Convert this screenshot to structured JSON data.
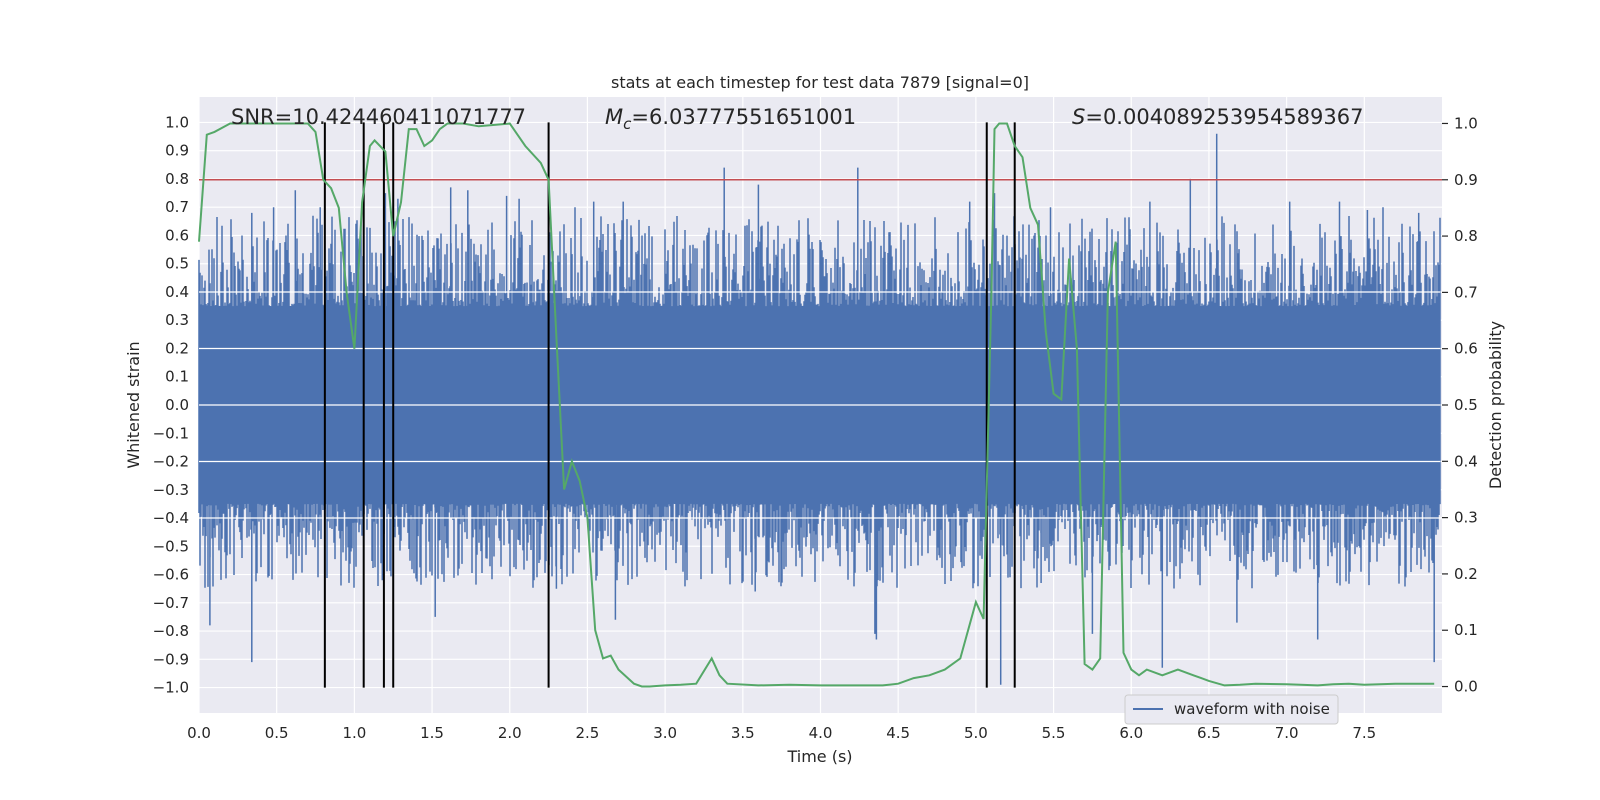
{
  "chart_data": {
    "type": "line",
    "title": "stats at each timestep for test data 7879 [signal=0]",
    "xlabel": "Time (s)",
    "ylabel": "Whitened strain",
    "y2label": "Detection probability",
    "xlim": [
      0.0,
      8.0
    ],
    "ylim": [
      -1.09,
      1.09
    ],
    "y2lim": [
      -0.047,
      1.047
    ],
    "xticks": [
      "0.0",
      "0.5",
      "1.0",
      "1.5",
      "2.0",
      "2.5",
      "3.0",
      "3.5",
      "4.0",
      "4.5",
      "5.0",
      "5.5",
      "6.0",
      "6.5",
      "7.0",
      "7.5"
    ],
    "yticks": [
      "1.0",
      "0.9",
      "0.8",
      "0.7",
      "0.6",
      "0.5",
      "0.4",
      "0.3",
      "0.2",
      "0.1",
      "0.0",
      "−0.1",
      "−0.2",
      "−0.3",
      "−0.4",
      "−0.5",
      "−0.6",
      "−0.7",
      "−0.8",
      "−0.9",
      "−1.0"
    ],
    "y2ticks": [
      "1.0",
      "0.9",
      "0.8",
      "0.7",
      "0.6",
      "0.5",
      "0.4",
      "0.3",
      "0.2",
      "0.1",
      "0.0"
    ],
    "annotations": {
      "snr": "SNR=10.424460411071777",
      "mc_prefix": "M",
      "mc_sub": "c",
      "mc_value": "=6.03777551651001",
      "s_prefix": "S",
      "s_value": "=0.004089253954589367"
    },
    "legend": {
      "label": "waveform with noise",
      "location": "lower right"
    },
    "threshold": {
      "value": 0.9,
      "axis": "y2",
      "color": "#c44e52"
    },
    "vertical_lines": [
      0.81,
      1.06,
      1.19,
      1.25,
      2.25,
      5.07,
      5.25
    ],
    "waveform": {
      "name": "waveform with noise",
      "color": "#4c72b0",
      "x_range": [
        0.0,
        7.99
      ],
      "core_amplitude": 0.35,
      "peaks_pos": [
        [
          0.34,
          0.68
        ],
        [
          0.48,
          0.7
        ],
        [
          0.62,
          0.76
        ],
        [
          0.78,
          0.7
        ],
        [
          1.2,
          0.75
        ],
        [
          1.28,
          0.73
        ],
        [
          1.62,
          0.77
        ],
        [
          1.73,
          0.76
        ],
        [
          1.98,
          0.74
        ],
        [
          2.06,
          0.73
        ],
        [
          2.42,
          0.7
        ],
        [
          2.54,
          0.72
        ],
        [
          2.73,
          0.72
        ],
        [
          3.38,
          0.84
        ],
        [
          3.6,
          0.78
        ],
        [
          4.24,
          0.84
        ],
        [
          4.96,
          0.72
        ],
        [
          5.12,
          0.75
        ],
        [
          5.48,
          0.7
        ],
        [
          6.12,
          0.72
        ],
        [
          6.38,
          0.8
        ],
        [
          6.55,
          0.96
        ],
        [
          7.02,
          0.72
        ],
        [
          7.34,
          0.72
        ],
        [
          7.52,
          0.69
        ],
        [
          7.62,
          0.7
        ],
        [
          7.85,
          0.68
        ]
      ],
      "peaks_neg": [
        [
          0.07,
          -0.78
        ],
        [
          0.34,
          -0.91
        ],
        [
          1.06,
          -0.84
        ],
        [
          1.18,
          -0.62
        ],
        [
          1.52,
          -0.75
        ],
        [
          2.3,
          -0.65
        ],
        [
          2.68,
          -0.76
        ],
        [
          3.58,
          -0.66
        ],
        [
          4.35,
          -0.81
        ],
        [
          4.36,
          -0.83
        ],
        [
          5.16,
          -0.99
        ],
        [
          5.16,
          -0.98
        ],
        [
          5.42,
          -0.63
        ],
        [
          5.75,
          -0.81
        ],
        [
          6.2,
          -0.93
        ],
        [
          6.68,
          -0.77
        ],
        [
          7.2,
          -0.83
        ],
        [
          7.95,
          -0.91
        ]
      ]
    },
    "series": [
      {
        "name": "Detection probability",
        "axis": "y2",
        "color": "#55a868",
        "x": [
          0.0,
          0.05,
          0.1,
          0.2,
          0.4,
          0.6,
          0.7,
          0.75,
          0.8,
          0.85,
          0.9,
          0.95,
          1.0,
          1.05,
          1.1,
          1.13,
          1.2,
          1.25,
          1.3,
          1.35,
          1.4,
          1.45,
          1.5,
          1.55,
          1.6,
          1.7,
          1.8,
          2.0,
          2.05,
          2.1,
          2.2,
          2.25,
          2.3,
          2.35,
          2.4,
          2.45,
          2.5,
          2.55,
          2.6,
          2.65,
          2.7,
          2.8,
          2.85,
          2.9,
          3.0,
          3.1,
          3.2,
          3.3,
          3.35,
          3.4,
          3.6,
          3.8,
          4.0,
          4.2,
          4.4,
          4.5,
          4.6,
          4.7,
          4.8,
          4.9,
          5.0,
          5.05,
          5.1,
          5.12,
          5.15,
          5.2,
          5.25,
          5.3,
          5.35,
          5.4,
          5.45,
          5.5,
          5.55,
          5.6,
          5.65,
          5.7,
          5.75,
          5.8,
          5.85,
          5.9,
          5.95,
          6.0,
          6.05,
          6.1,
          6.2,
          6.3,
          6.4,
          6.45,
          6.5,
          6.6,
          6.7,
          6.8,
          7.0,
          7.2,
          7.3,
          7.4,
          7.5,
          7.6,
          7.7,
          7.8,
          7.9,
          7.95
        ],
        "values": [
          0.79,
          0.98,
          0.985,
          1.0,
          1.0,
          1.0,
          1.0,
          0.985,
          0.9,
          0.885,
          0.85,
          0.7,
          0.6,
          0.86,
          0.96,
          0.97,
          0.95,
          0.8,
          0.86,
          0.99,
          0.99,
          0.96,
          0.97,
          0.99,
          1.0,
          1.0,
          0.995,
          1.0,
          0.98,
          0.96,
          0.93,
          0.9,
          0.62,
          0.35,
          0.4,
          0.365,
          0.3,
          0.1,
          0.05,
          0.055,
          0.03,
          0.005,
          0.0,
          0.0,
          0.002,
          0.003,
          0.005,
          0.05,
          0.02,
          0.005,
          0.002,
          0.003,
          0.002,
          0.002,
          0.002,
          0.005,
          0.015,
          0.02,
          0.03,
          0.05,
          0.15,
          0.12,
          0.7,
          0.99,
          1.0,
          1.0,
          0.96,
          0.94,
          0.85,
          0.82,
          0.63,
          0.52,
          0.51,
          0.76,
          0.6,
          0.04,
          0.03,
          0.05,
          0.7,
          0.79,
          0.06,
          0.03,
          0.02,
          0.03,
          0.02,
          0.03,
          0.02,
          0.015,
          0.01,
          0.002,
          0.003,
          0.005,
          0.004,
          0.002,
          0.004,
          0.005,
          0.003,
          0.004,
          0.005,
          0.005,
          0.005,
          0.005
        ]
      }
    ]
  }
}
